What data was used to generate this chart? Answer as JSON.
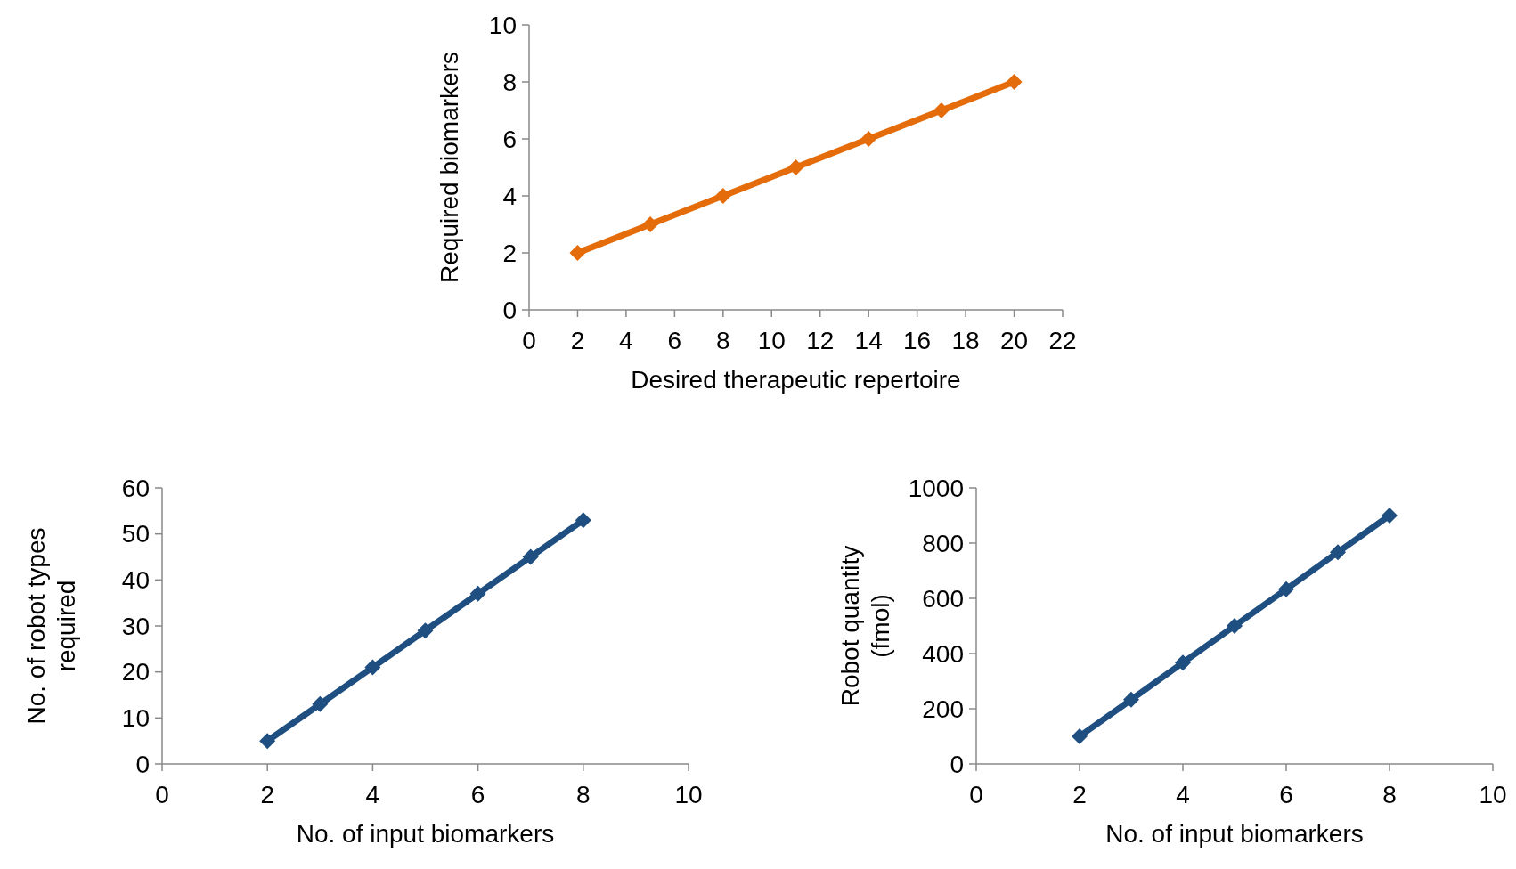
{
  "chart_data": [
    {
      "type": "line",
      "xlabel": "Desired therapeutic repertoire",
      "ylabel": "Required biomarkers",
      "x": [
        2,
        5,
        8,
        11,
        14,
        17,
        20
      ],
      "xlim": [
        0,
        22
      ],
      "xticks": [
        0,
        2,
        4,
        6,
        8,
        10,
        12,
        14,
        16,
        18,
        20,
        22
      ],
      "ylim": [
        0,
        10
      ],
      "yticks": [
        0,
        2,
        4,
        6,
        8,
        10
      ],
      "marker": "diamond",
      "grid": false,
      "series": [
        {
          "color": "#e46c0a",
          "values": [
            2,
            3,
            4,
            5,
            6,
            7,
            8
          ]
        }
      ]
    },
    {
      "type": "line",
      "xlabel": "No. of input biomarkers",
      "ylabel": "No. of robot types required",
      "x": [
        2,
        3,
        4,
        5,
        6,
        7,
        8
      ],
      "xlim": [
        0,
        10
      ],
      "xticks": [
        0,
        2,
        4,
        6,
        8,
        10
      ],
      "ylim": [
        0,
        60
      ],
      "yticks": [
        0,
        10,
        20,
        30,
        40,
        50,
        60
      ],
      "marker": "diamond",
      "grid": false,
      "series": [
        {
          "color": "#1f4e80",
          "values": [
            5,
            13,
            21,
            29,
            37,
            45,
            53
          ]
        }
      ]
    },
    {
      "type": "line",
      "xlabel": "No. of input biomarkers",
      "ylabel": "Robot quantity (fmol)",
      "x": [
        2,
        3,
        4,
        5,
        6,
        7,
        8
      ],
      "xlim": [
        0,
        10
      ],
      "xticks": [
        0,
        2,
        4,
        6,
        8,
        10
      ],
      "ylim": [
        0,
        1000
      ],
      "yticks": [
        0,
        200,
        400,
        600,
        800,
        1000
      ],
      "marker": "diamond",
      "grid": false,
      "series": [
        {
          "color": "#1f4e80",
          "values": [
            100,
            233,
            367,
            500,
            633,
            767,
            900
          ]
        }
      ]
    }
  ]
}
